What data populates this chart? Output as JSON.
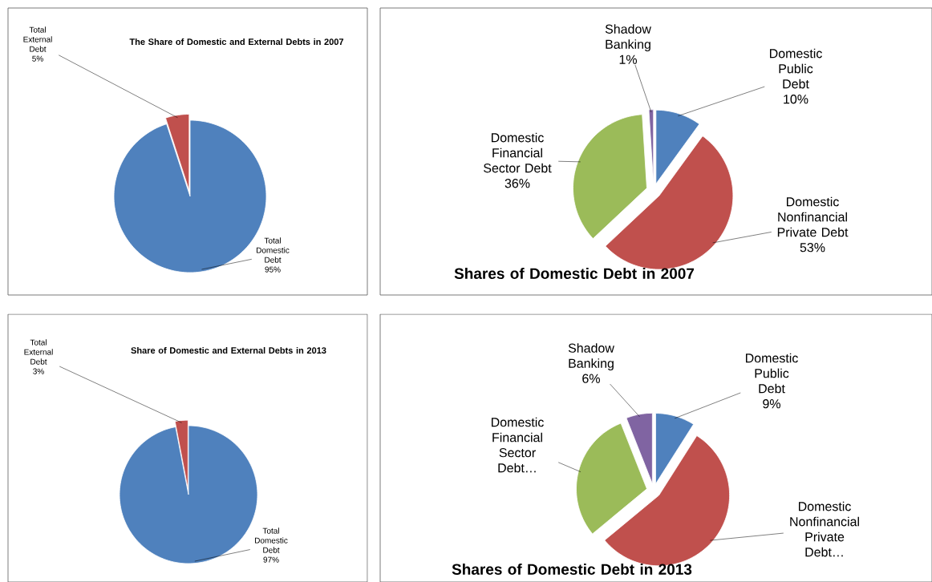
{
  "chart_data": [
    {
      "type": "pie",
      "title": "The Share of Domestic and External Debts in 2007",
      "categories": [
        "Total Domestic Debt",
        "Total External Debt"
      ],
      "values": [
        95,
        5
      ],
      "value_labels": [
        "95%",
        "5%"
      ],
      "colors": [
        "#4f81bd",
        "#c0504d"
      ]
    },
    {
      "type": "pie",
      "title": "Shares of Domestic Debt in 2007",
      "categories": [
        "Domestic Public Debt",
        "Domestic Nonfinancial Private Debt",
        "Domestic Financial Sector Debt",
        "Shadow Banking"
      ],
      "values": [
        10,
        53,
        36,
        1
      ],
      "value_labels": [
        "10%",
        "53%",
        "36%",
        "1%"
      ],
      "colors": [
        "#4f81bd",
        "#c0504d",
        "#9bbb59",
        "#8064a2"
      ]
    },
    {
      "type": "pie",
      "title": "Share of Domestic and External Debts in 2013",
      "categories": [
        "Total Domestic Debt",
        "Total External Debt"
      ],
      "values": [
        97,
        3
      ],
      "value_labels": [
        "97%",
        "3%"
      ],
      "colors": [
        "#4f81bd",
        "#c0504d"
      ]
    },
    {
      "type": "pie",
      "title": "Shares of Domestic Debt in 2013",
      "categories": [
        "Domestic Public Debt",
        "Domestic Nonfinancial Private Debt…",
        "Domestic Financial Sector Debt…",
        "Shadow Banking"
      ],
      "values": [
        9,
        55,
        30,
        6
      ],
      "value_labels": [
        "9%",
        null,
        null,
        "6%"
      ],
      "colors": [
        "#4f81bd",
        "#c0504d",
        "#9bbb59",
        "#8064a2"
      ]
    }
  ]
}
